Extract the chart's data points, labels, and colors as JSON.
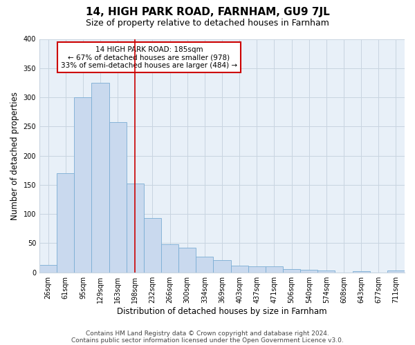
{
  "title": "14, HIGH PARK ROAD, FARNHAM, GU9 7JL",
  "subtitle": "Size of property relative to detached houses in Farnham",
  "xlabel": "Distribution of detached houses by size in Farnham",
  "ylabel": "Number of detached properties",
  "bar_labels": [
    "26sqm",
    "61sqm",
    "95sqm",
    "129sqm",
    "163sqm",
    "198sqm",
    "232sqm",
    "266sqm",
    "300sqm",
    "334sqm",
    "369sqm",
    "403sqm",
    "437sqm",
    "471sqm",
    "506sqm",
    "540sqm",
    "574sqm",
    "608sqm",
    "643sqm",
    "677sqm",
    "711sqm"
  ],
  "bar_values": [
    13,
    170,
    300,
    325,
    258,
    152,
    93,
    48,
    42,
    27,
    21,
    11,
    10,
    10,
    5,
    4,
    3,
    0,
    2,
    0,
    3
  ],
  "bar_color": "#c9d9ee",
  "bar_edge_color": "#7aadd4",
  "vline_x": 5,
  "vline_color": "#cc0000",
  "annotation_title": "14 HIGH PARK ROAD: 185sqm",
  "annotation_line1": "← 67% of detached houses are smaller (978)",
  "annotation_line2": "33% of semi-detached houses are larger (484) →",
  "annotation_box_color": "#ffffff",
  "annotation_box_edge": "#cc0000",
  "ylim": [
    0,
    400
  ],
  "yticks": [
    0,
    50,
    100,
    150,
    200,
    250,
    300,
    350,
    400
  ],
  "footnote1": "Contains HM Land Registry data © Crown copyright and database right 2024.",
  "footnote2": "Contains public sector information licensed under the Open Government Licence v3.0.",
  "bg_color": "#ffffff",
  "plot_bg_color": "#e8f0f8",
  "grid_color": "#c8d4e0",
  "title_fontsize": 11,
  "subtitle_fontsize": 9,
  "axis_label_fontsize": 8.5,
  "tick_fontsize": 7,
  "annotation_fontsize": 7.5,
  "footnote_fontsize": 6.5
}
